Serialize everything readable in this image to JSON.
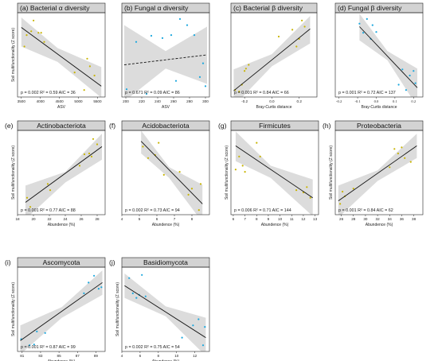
{
  "colors": {
    "yellow": "#c8b400",
    "cyan": "#1aa7de",
    "band": "#dcdcdc",
    "strip": "#d3d3d3",
    "line": "#111111"
  },
  "chart_data": [
    {
      "type": "scatter",
      "title": "(a)   Bacterial α diversity",
      "xlabel": "ASV",
      "ylabel": "Soil multifunctionality (Z score)",
      "stat": "p = 0.002 R² = 0.59 AIC = 36",
      "xlim": [
        3400,
        5700
      ],
      "ylim": [
        0,
        1
      ],
      "xticks": [
        3500,
        4000,
        4500,
        5000,
        5500
      ],
      "tick_labels": [
        "3500",
        "4000",
        "4500",
        "5000",
        "5500"
      ],
      "color": "#c8b400",
      "fit": {
        "x": [
          3500,
          5600
        ],
        "y": [
          0.87,
          0.1
        ],
        "dashed": false
      },
      "band": {
        "x": [
          3500,
          4450,
          5600
        ],
        "upper": [
          1.0,
          0.6,
          0.35
        ],
        "lower": [
          0.62,
          0.42,
          -0.05
        ]
      },
      "points": {
        "x": [
          3580,
          3640,
          3760,
          3820,
          3950,
          4020,
          4100,
          4900,
          5150,
          5230,
          5300,
          5420
        ],
        "y": [
          0.62,
          0.77,
          0.82,
          0.96,
          0.8,
          0.8,
          0.68,
          0.28,
          0.05,
          0.46,
          0.36,
          0.24
        ]
      }
    },
    {
      "type": "scatter",
      "title": "(b)   Fungal α diversity",
      "xlabel": "ASV",
      "ylabel": "",
      "stat": "p = 0.671 R² = 0.09 AIC = 86",
      "xlim": [
        195,
        305
      ],
      "ylim": [
        0,
        1
      ],
      "xticks": [
        200,
        220,
        240,
        260,
        280,
        300
      ],
      "tick_labels": [
        "200",
        "220",
        "240",
        "260",
        "280",
        "300"
      ],
      "color": "#1aa7de",
      "fit": {
        "x": [
          198,
          302
        ],
        "y": [
          0.38,
          0.51
        ],
        "dashed": true
      },
      "band": {
        "x": [
          198,
          250,
          302
        ],
        "upper": [
          0.9,
          0.56,
          0.88
        ],
        "lower": [
          -0.1,
          0.33,
          0.13
        ]
      },
      "points": {
        "x": [
          201,
          213,
          226,
          232,
          246,
          257,
          263,
          268,
          277,
          286,
          293,
          297,
          300
        ],
        "y": [
          0.06,
          0.68,
          0.0,
          0.76,
          0.73,
          0.77,
          0.17,
          0.98,
          0.9,
          0.77,
          0.22,
          0.4,
          0.1
        ]
      }
    },
    {
      "type": "scatter",
      "title": "(c)   Bacterial β diversity",
      "xlabel": "Bray-Curtis distance",
      "ylabel": "",
      "stat": "p = 0.001 R² = 0.84 AIC = 66",
      "xlim": [
        -0.3,
        0.33
      ],
      "ylim": [
        0,
        1
      ],
      "xticks": [
        -0.2,
        0.0,
        0.2
      ],
      "tick_labels": [
        "-0.2",
        "0.0",
        "0.2"
      ],
      "color": "#c8b400",
      "fit": {
        "x": [
          -0.28,
          0.28
        ],
        "y": [
          0.04,
          0.85
        ],
        "dashed": false
      },
      "band": {
        "x": [
          -0.28,
          0.0,
          0.28
        ],
        "upper": [
          0.32,
          0.52,
          1.02
        ],
        "lower": [
          -0.16,
          0.36,
          0.66
        ]
      },
      "points": {
        "x": [
          -0.27,
          -0.24,
          -0.22,
          -0.2,
          -0.19,
          -0.17,
          0.05,
          0.15,
          0.18,
          0.2,
          0.22,
          0.24
        ],
        "y": [
          0.05,
          0.03,
          0.12,
          0.3,
          0.33,
          0.38,
          0.75,
          0.84,
          0.62,
          0.72,
          0.96,
          0.88
        ]
      }
    },
    {
      "type": "scatter",
      "title": "(d)   Fungal β diversity",
      "xlabel": "Bray-Curtis distance",
      "ylabel": "",
      "stat": "p = 0.001 R² = 0.72 AIC = 137",
      "xlim": [
        -0.22,
        0.25
      ],
      "ylim": [
        0,
        1
      ],
      "xticks": [
        -0.2,
        -0.1,
        0.0,
        0.1,
        0.2
      ],
      "tick_labels": [
        "-0.2",
        "-0.1",
        "0.0",
        "0.1",
        "0.2"
      ],
      "color": "#1aa7de",
      "fit": {
        "x": [
          -0.09,
          0.22
        ],
        "y": [
          0.88,
          0.08
        ],
        "dashed": false
      },
      "band": {
        "x": [
          -0.09,
          0.06,
          0.22
        ],
        "upper": [
          1.05,
          0.56,
          0.33
        ],
        "lower": [
          0.7,
          0.44,
          -0.17
        ]
      },
      "points": {
        "x": [
          -0.09,
          -0.07,
          -0.05,
          -0.03,
          -0.02,
          0.0,
          0.12,
          0.14,
          0.16,
          0.18,
          0.2,
          0.21
        ],
        "y": [
          0.92,
          0.8,
          0.98,
          0.72,
          0.9,
          0.81,
          0.12,
          0.32,
          0.05,
          0.24,
          0.3,
          0.14
        ]
      }
    },
    {
      "type": "scatter",
      "title": "Actinobacteriota",
      "label_prefix": "(e)",
      "xlabel": "Abundence (%)",
      "ylabel": "Soil multifunctionality (Z score)",
      "stat": "p = 0.001 R² = 0.77 AIC = 88",
      "xlim": [
        18,
        29
      ],
      "ylim": [
        0,
        1
      ],
      "xticks": [
        18,
        20,
        22,
        24,
        26,
        28
      ],
      "tick_labels": [
        "18",
        "20",
        "22",
        "24",
        "26",
        "28"
      ],
      "color": "#c8b400",
      "fit": {
        "x": [
          19,
          28.6
        ],
        "y": [
          0.12,
          0.85
        ],
        "dashed": false
      },
      "band": {
        "x": [
          19,
          24,
          28.6
        ],
        "upper": [
          0.34,
          0.52,
          1.02
        ],
        "lower": [
          -0.1,
          0.38,
          0.68
        ]
      },
      "points": {
        "x": [
          19.2,
          19.6,
          21.8,
          22.1,
          25.8,
          26.4,
          27.0,
          27.3,
          27.5,
          28.0
        ],
        "y": [
          0.18,
          0.06,
          0.36,
          0.28,
          0.6,
          0.75,
          0.76,
          0.72,
          0.95,
          0.88
        ]
      }
    },
    {
      "type": "scatter",
      "title": "Acidobacteriota",
      "label_prefix": "(f)",
      "xlabel": "Abundence (%)",
      "ylabel": "",
      "stat": "p = 0.002 R² = 0.73 AIC = 94",
      "xlim": [
        4,
        9
      ],
      "ylim": [
        0,
        1
      ],
      "xticks": [
        4,
        5,
        6,
        7,
        8
      ],
      "tick_labels": [
        "4",
        "5",
        "6",
        "7",
        "8"
      ],
      "color": "#c8b400",
      "fit": {
        "x": [
          5.1,
          8.6
        ],
        "y": [
          0.92,
          0.1
        ],
        "dashed": false
      },
      "band": {
        "x": [
          5.1,
          6.7,
          8.6
        ],
        "upper": [
          1.06,
          0.58,
          0.35
        ],
        "lower": [
          0.76,
          0.44,
          -0.14
        ]
      },
      "points": {
        "x": [
          5.2,
          5.5,
          5.9,
          6.1,
          6.4,
          7.3,
          7.8,
          8.0,
          8.4,
          8.5
        ],
        "y": [
          0.85,
          0.7,
          0.74,
          0.9,
          0.48,
          0.52,
          0.22,
          0.3,
          0.02,
          0.36
        ]
      }
    },
    {
      "type": "scatter",
      "title": "Firmicutes",
      "label_prefix": "(g)",
      "xlabel": "Abundence (%)",
      "ylabel": "Soil multifunctionality (Z score)",
      "stat": "p = 0.006 R² = 0.71 AIC = 144",
      "xlim": [
        5.8,
        13.3
      ],
      "ylim": [
        0,
        1
      ],
      "xticks": [
        6,
        7,
        8,
        9,
        10,
        11,
        12,
        13
      ],
      "tick_labels": [
        "6",
        "7",
        "8",
        "9",
        "10",
        "11",
        "12",
        "13"
      ],
      "color": "#c8b400",
      "fit": {
        "x": [
          6.2,
          12.8
        ],
        "y": [
          0.86,
          0.18
        ],
        "dashed": false
      },
      "band": {
        "x": [
          6.2,
          9.2,
          12.8
        ],
        "upper": [
          1.05,
          0.6,
          0.42
        ],
        "lower": [
          0.66,
          0.44,
          -0.06
        ]
      },
      "points": {
        "x": [
          6.2,
          6.5,
          6.8,
          7.0,
          8.0,
          8.3,
          11.4,
          12.0,
          12.3,
          12.6
        ],
        "y": [
          0.55,
          0.72,
          0.6,
          0.52,
          0.9,
          0.72,
          0.28,
          0.25,
          0.32,
          0.18
        ]
      }
    },
    {
      "type": "scatter",
      "title": "Proteobacteria",
      "label_prefix": "(h)",
      "xlabel": "Abundence (%)",
      "ylabel": "Soil multifunctionality (Z score)",
      "stat": "p = 0.001 R² = 0.84 AIC = 62",
      "xlim": [
        25,
        39.5
      ],
      "ylim": [
        0,
        1
      ],
      "xticks": [
        26,
        28,
        30,
        32,
        34,
        36,
        38
      ],
      "tick_labels": [
        "26",
        "28",
        "30",
        "32",
        "34",
        "36",
        "38"
      ],
      "color": "#c8b400",
      "fit": {
        "x": [
          25.5,
          38.5
        ],
        "y": [
          0.14,
          0.86
        ],
        "dashed": false
      },
      "band": {
        "x": [
          25.5,
          32,
          38.5
        ],
        "upper": [
          0.34,
          0.54,
          1.02
        ],
        "lower": [
          -0.08,
          0.4,
          0.7
        ]
      },
      "points": {
        "x": [
          25.8,
          26.2,
          26.6,
          28.0,
          34.0,
          34.8,
          35.4,
          36.0,
          36.5,
          37.5
        ],
        "y": [
          0.1,
          0.26,
          0.2,
          0.3,
          0.58,
          0.82,
          0.76,
          0.84,
          0.7,
          0.65
        ]
      }
    },
    {
      "type": "scatter",
      "title": "Ascomycota",
      "label_prefix": "(i)",
      "xlabel": "Abundence (%)",
      "ylabel": "Soil multifunctionality (Z score)",
      "stat": "p = 0.001 R² = 0.87 AIC = 99",
      "xlim": [
        80.5,
        90
      ],
      "ylim": [
        0,
        1
      ],
      "xticks": [
        81,
        83,
        85,
        87,
        89
      ],
      "tick_labels": [
        "81",
        "83",
        "85",
        "87",
        "89"
      ],
      "color": "#1aa7de",
      "fit": {
        "x": [
          80.8,
          89.7
        ],
        "y": [
          0.1,
          0.86
        ],
        "dashed": false
      },
      "band": {
        "x": [
          80.8,
          85.3,
          89.7
        ],
        "upper": [
          0.3,
          0.54,
          1.02
        ],
        "lower": [
          -0.08,
          0.4,
          0.7
        ]
      },
      "points": {
        "x": [
          80.9,
          81.8,
          82.3,
          82.6,
          83.5,
          87.7,
          88.2,
          88.8,
          89.3,
          89.6
        ],
        "y": [
          0.12,
          0.04,
          0.05,
          0.22,
          0.2,
          0.72,
          0.86,
          0.95,
          0.78,
          0.8
        ]
      }
    },
    {
      "type": "scatter",
      "title": "Basidiomycota",
      "label_prefix": "(j)",
      "xlabel": "Abundence (%)",
      "ylabel": "Soil multifunctionality (Z score)",
      "stat": "p = 0.002 R² = 0.75 AIC = 54",
      "xlim": [
        4,
        13.6
      ],
      "ylim": [
        0,
        1
      ],
      "xticks": [
        4,
        6,
        8,
        10,
        12
      ],
      "tick_labels": [
        "4",
        "6",
        "8",
        "10",
        "12"
      ],
      "color": "#1aa7de",
      "fit": {
        "x": [
          4.3,
          13.2
        ],
        "y": [
          0.82,
          0.14
        ],
        "dashed": false
      },
      "band": {
        "x": [
          4.3,
          8.8,
          13.2
        ],
        "upper": [
          0.98,
          0.55,
          0.4
        ],
        "lower": [
          0.66,
          0.42,
          -0.1
        ]
      },
      "points": {
        "x": [
          4.8,
          5.2,
          5.6,
          5.9,
          6.2,
          6.6,
          10.6,
          11.8,
          12.4,
          12.9,
          13.1
        ],
        "y": [
          0.92,
          0.72,
          0.66,
          0.7,
          0.96,
          0.68,
          0.14,
          0.3,
          0.38,
          0.04,
          0.28
        ]
      }
    }
  ]
}
